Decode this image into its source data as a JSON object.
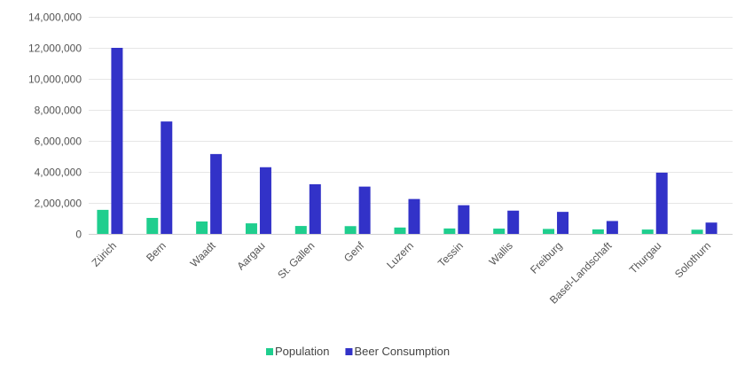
{
  "chart_data": {
    "type": "bar",
    "title": "",
    "xlabel": "",
    "ylabel": "",
    "ylim": [
      0,
      14000000
    ],
    "yticks": [
      0,
      2000000,
      4000000,
      6000000,
      8000000,
      10000000,
      12000000,
      14000000
    ],
    "ytick_labels": [
      "0",
      "2,000,000",
      "4,000,000",
      "6,000,000",
      "8,000,000",
      "10,000,000",
      "12,000,000",
      "14,000,000"
    ],
    "grid": true,
    "legend_position": "bottom",
    "categories": [
      "Zürich",
      "Bern",
      "Waadt",
      "Aargau",
      "St. Gallen",
      "Genf",
      "Luzern",
      "Tessin",
      "Wallis",
      "Freiburg",
      "Basel-Landschaft",
      "Thurgau",
      "Solothurn"
    ],
    "series": [
      {
        "name": "Population",
        "color": "#1fce8e",
        "values": [
          1550000,
          1030000,
          800000,
          680000,
          510000,
          500000,
          410000,
          350000,
          340000,
          320000,
          290000,
          280000,
          270000
        ]
      },
      {
        "name": "Beer Consumption",
        "color": "#3232c8",
        "values": [
          12000000,
          7250000,
          5150000,
          4300000,
          3200000,
          3050000,
          2250000,
          1850000,
          1500000,
          1420000,
          830000,
          3950000,
          730000
        ]
      }
    ]
  }
}
